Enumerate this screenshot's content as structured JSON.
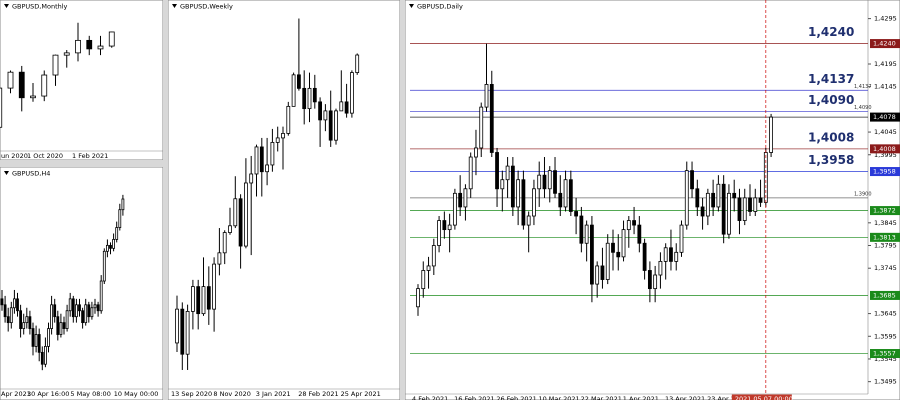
{
  "chart_data": [
    {
      "type": "candlestick",
      "title": "GBPUSD,Monthly",
      "categories": [
        "un 2020",
        null,
        null,
        null,
        "1 Oct 2020",
        null,
        null,
        null,
        "1 Feb 2021",
        null,
        null,
        null
      ],
      "open": [
        1.235,
        1.24,
        1.309,
        1.337,
        1.292,
        1.295,
        1.332,
        1.367,
        1.371,
        1.393,
        1.378,
        1.383
      ],
      "high": [
        1.281,
        1.317,
        1.34,
        1.348,
        1.318,
        1.34,
        1.368,
        1.376,
        1.424,
        1.401,
        1.401,
        1.4085
      ],
      "low": [
        1.225,
        1.238,
        1.3,
        1.268,
        1.285,
        1.286,
        1.313,
        1.345,
        1.356,
        1.367,
        1.367,
        1.38
      ],
      "close": [
        1.24,
        1.309,
        1.337,
        1.292,
        1.295,
        1.332,
        1.367,
        1.371,
        1.393,
        1.378,
        1.383,
        1.4078
      ],
      "ylim": [
        1.2,
        1.45
      ]
    },
    {
      "type": "candlestick",
      "title": "GBPUSD,H4",
      "categories": [
        "Apr 2021",
        null,
        null,
        null,
        null,
        null,
        null,
        null,
        null,
        null,
        "30 Apr 16:00",
        null,
        null,
        null,
        null,
        null,
        null,
        null,
        null,
        null,
        null,
        null,
        null,
        null,
        "5 May 08:00",
        null,
        null,
        null,
        null,
        null,
        null,
        null,
        null,
        null,
        null,
        null,
        null,
        null,
        "10 May 00:00",
        null
      ],
      "open": [
        1.391,
        1.39,
        1.388,
        1.387,
        1.3895,
        1.391,
        1.389,
        1.386,
        1.387,
        1.388,
        1.386,
        1.383,
        1.385,
        1.382,
        1.38,
        1.383,
        1.386,
        1.39,
        1.388,
        1.385,
        1.387,
        1.386,
        1.389,
        1.391,
        1.388,
        1.39,
        1.389,
        1.387,
        1.39,
        1.388,
        1.3895,
        1.39,
        1.389,
        1.394,
        1.399,
        1.4,
        1.3995,
        1.401,
        1.403,
        1.406
      ],
      "high": [
        1.3925,
        1.3915,
        1.3895,
        1.3905,
        1.3925,
        1.392,
        1.39,
        1.3885,
        1.3895,
        1.389,
        1.387,
        1.3865,
        1.386,
        1.383,
        1.3845,
        1.387,
        1.3915,
        1.391,
        1.389,
        1.3885,
        1.388,
        1.39,
        1.392,
        1.3915,
        1.391,
        1.391,
        1.3895,
        1.391,
        1.3905,
        1.3905,
        1.391,
        1.3905,
        1.395,
        1.3995,
        1.401,
        1.4005,
        1.402,
        1.404,
        1.407,
        1.4085
      ],
      "low": [
        1.389,
        1.387,
        1.3855,
        1.386,
        1.3885,
        1.388,
        1.3845,
        1.385,
        1.386,
        1.385,
        1.3815,
        1.382,
        1.3805,
        1.379,
        1.3795,
        1.382,
        1.385,
        1.387,
        1.384,
        1.3845,
        1.385,
        1.3855,
        1.388,
        1.387,
        1.387,
        1.388,
        1.386,
        1.3865,
        1.387,
        1.3875,
        1.3885,
        1.388,
        1.3885,
        1.3935,
        1.398,
        1.3985,
        1.399,
        1.4005,
        1.4025,
        1.405
      ],
      "close": [
        1.39,
        1.388,
        1.387,
        1.3895,
        1.391,
        1.389,
        1.386,
        1.387,
        1.388,
        1.386,
        1.383,
        1.385,
        1.382,
        1.38,
        1.383,
        1.386,
        1.39,
        1.388,
        1.385,
        1.387,
        1.386,
        1.389,
        1.391,
        1.388,
        1.39,
        1.389,
        1.387,
        1.39,
        1.388,
        1.3895,
        1.39,
        1.389,
        1.394,
        1.399,
        1.4,
        1.3995,
        1.401,
        1.403,
        1.406,
        1.4078
      ],
      "ylim": [
        1.376,
        1.411
      ]
    },
    {
      "type": "candlestick",
      "title": "GBPUSD,Weekly",
      "categories": [
        "13 Sep 2020",
        null,
        null,
        null,
        null,
        null,
        null,
        null,
        "8 Nov 2020",
        null,
        null,
        null,
        null,
        null,
        null,
        null,
        "3 Jan 2021",
        null,
        null,
        null,
        null,
        null,
        null,
        null,
        "28 Feb 2021",
        null,
        null,
        null,
        null,
        null,
        null,
        null,
        "25 Apr 2021",
        null,
        null
      ],
      "open": [
        1.28,
        1.295,
        1.275,
        1.294,
        1.305,
        1.293,
        1.305,
        1.295,
        1.315,
        1.32,
        1.329,
        1.332,
        1.344,
        1.323,
        1.351,
        1.355,
        1.367,
        1.356,
        1.359,
        1.369,
        1.371,
        1.373,
        1.385,
        1.399,
        1.393,
        1.384,
        1.393,
        1.387,
        1.379,
        1.383,
        1.37,
        1.383,
        1.387,
        1.382,
        1.4
      ],
      "high": [
        1.301,
        1.298,
        1.297,
        1.308,
        1.308,
        1.318,
        1.314,
        1.318,
        1.331,
        1.33,
        1.34,
        1.354,
        1.346,
        1.362,
        1.363,
        1.368,
        1.371,
        1.371,
        1.375,
        1.376,
        1.376,
        1.387,
        1.4,
        1.424,
        1.401,
        1.4,
        1.399,
        1.389,
        1.386,
        1.392,
        1.384,
        1.401,
        1.395,
        1.401,
        1.4085
      ],
      "low": [
        1.276,
        1.268,
        1.268,
        1.286,
        1.286,
        1.292,
        1.288,
        1.285,
        1.31,
        1.315,
        1.328,
        1.331,
        1.313,
        1.322,
        1.319,
        1.345,
        1.345,
        1.35,
        1.356,
        1.365,
        1.357,
        1.372,
        1.385,
        1.392,
        1.377,
        1.378,
        1.384,
        1.367,
        1.374,
        1.367,
        1.368,
        1.383,
        1.38,
        1.38,
        1.399
      ],
      "close": [
        1.295,
        1.275,
        1.294,
        1.305,
        1.293,
        1.305,
        1.295,
        1.315,
        1.32,
        1.329,
        1.332,
        1.344,
        1.323,
        1.351,
        1.355,
        1.367,
        1.356,
        1.359,
        1.369,
        1.371,
        1.373,
        1.385,
        1.399,
        1.393,
        1.384,
        1.393,
        1.387,
        1.379,
        1.383,
        1.37,
        1.383,
        1.387,
        1.382,
        1.4,
        1.4078
      ],
      "ylim": [
        1.26,
        1.43
      ]
    },
    {
      "type": "candlestick",
      "title": "GBPUSD,Daily",
      "categories": [
        "4 Feb 2021",
        null,
        null,
        null,
        null,
        null,
        null,
        null,
        "16 Feb 2021",
        null,
        null,
        null,
        null,
        null,
        null,
        null,
        "26 Feb 2021",
        null,
        null,
        null,
        null,
        null,
        null,
        null,
        "10 Mar 2021",
        null,
        null,
        null,
        null,
        null,
        null,
        null,
        "22 Mar 2021",
        null,
        null,
        null,
        null,
        null,
        null,
        null,
        "1 Apr 2021",
        null,
        null,
        null,
        null,
        null,
        null,
        null,
        "13 Apr 2021",
        null,
        null,
        null,
        null,
        null,
        null,
        null,
        "23 Apr 2021",
        null,
        null,
        null,
        null,
        null,
        null,
        null,
        null,
        null,
        null,
        null
      ],
      "crosshair_label": "2021.05.07 00:00",
      "open": [
        1.366,
        1.37,
        1.374,
        1.375,
        1.3795,
        1.385,
        1.383,
        1.384,
        1.391,
        1.388,
        1.392,
        1.399,
        1.401,
        1.41,
        1.415,
        1.4,
        1.392,
        1.394,
        1.397,
        1.388,
        1.394,
        1.384,
        1.386,
        1.392,
        1.395,
        1.392,
        1.396,
        1.391,
        1.388,
        1.394,
        1.387,
        1.386,
        1.38,
        1.384,
        1.371,
        1.375,
        1.372,
        1.38,
        1.378,
        1.377,
        1.383,
        1.385,
        1.384,
        1.38,
        1.374,
        1.37,
        1.373,
        1.376,
        1.379,
        1.376,
        1.378,
        1.384,
        1.396,
        1.392,
        1.388,
        1.386,
        1.391,
        1.388,
        1.393,
        1.382,
        1.391,
        1.39,
        1.385,
        1.39,
        1.387,
        1.39,
        1.389,
        1.4
      ],
      "high": [
        1.371,
        1.376,
        1.377,
        1.381,
        1.386,
        1.387,
        1.3865,
        1.392,
        1.395,
        1.393,
        1.4,
        1.405,
        1.411,
        1.424,
        1.418,
        1.401,
        1.396,
        1.399,
        1.399,
        1.396,
        1.396,
        1.387,
        1.394,
        1.398,
        1.399,
        1.397,
        1.399,
        1.395,
        1.396,
        1.396,
        1.39,
        1.388,
        1.385,
        1.386,
        1.376,
        1.379,
        1.382,
        1.383,
        1.382,
        1.385,
        1.386,
        1.388,
        1.386,
        1.381,
        1.376,
        1.375,
        1.378,
        1.38,
        1.383,
        1.38,
        1.385,
        1.398,
        1.398,
        1.394,
        1.39,
        1.392,
        1.394,
        1.395,
        1.395,
        1.393,
        1.394,
        1.392,
        1.392,
        1.393,
        1.392,
        1.394,
        1.401,
        1.4085
      ],
      "low": [
        1.364,
        1.368,
        1.37,
        1.373,
        1.378,
        1.381,
        1.378,
        1.383,
        1.386,
        1.385,
        1.39,
        1.395,
        1.399,
        1.409,
        1.399,
        1.388,
        1.387,
        1.39,
        1.386,
        1.384,
        1.383,
        1.378,
        1.384,
        1.388,
        1.39,
        1.389,
        1.39,
        1.386,
        1.387,
        1.386,
        1.382,
        1.378,
        1.376,
        1.367,
        1.368,
        1.37,
        1.371,
        1.374,
        1.374,
        1.376,
        1.379,
        1.382,
        1.378,
        1.372,
        1.367,
        1.367,
        1.37,
        1.372,
        1.374,
        1.374,
        1.377,
        1.383,
        1.39,
        1.386,
        1.383,
        1.384,
        1.386,
        1.387,
        1.38,
        1.381,
        1.387,
        1.382,
        1.384,
        1.386,
        1.386,
        1.388,
        1.388,
        1.399
      ],
      "close": [
        1.37,
        1.374,
        1.375,
        1.3795,
        1.385,
        1.383,
        1.384,
        1.391,
        1.388,
        1.392,
        1.399,
        1.401,
        1.41,
        1.415,
        1.4,
        1.392,
        1.394,
        1.397,
        1.388,
        1.394,
        1.384,
        1.386,
        1.392,
        1.395,
        1.392,
        1.396,
        1.391,
        1.388,
        1.394,
        1.387,
        1.386,
        1.38,
        1.384,
        1.371,
        1.375,
        1.372,
        1.38,
        1.378,
        1.377,
        1.383,
        1.385,
        1.384,
        1.38,
        1.374,
        1.37,
        1.373,
        1.376,
        1.379,
        1.376,
        1.378,
        1.384,
        1.396,
        1.392,
        1.388,
        1.386,
        1.391,
        1.388,
        1.393,
        1.382,
        1.391,
        1.39,
        1.385,
        1.39,
        1.387,
        1.39,
        1.389,
        1.4,
        1.4078
      ],
      "ylim": [
        1.347,
        1.4325
      ],
      "yticks": [
        {
          "value": 1.4295,
          "label": "1,4295"
        },
        {
          "value": 1.4195,
          "label": "1,4195"
        },
        {
          "value": 1.4145,
          "label": "1,4145"
        },
        {
          "value": 1.4045,
          "label": "1,4045"
        },
        {
          "value": 1.3995,
          "label": "1,3995"
        },
        {
          "value": 1.3845,
          "label": "1,3845"
        },
        {
          "value": 1.3795,
          "label": "1,3795"
        },
        {
          "value": 1.3745,
          "label": "1,3745"
        },
        {
          "value": 1.3645,
          "label": "1,3645"
        },
        {
          "value": 1.3595,
          "label": "1,3595"
        },
        {
          "value": 1.3545,
          "label": "1,3545"
        },
        {
          "value": 1.3495,
          "label": "1,3495"
        }
      ],
      "levels": [
        {
          "value": 1.424,
          "label": "1,4240",
          "color": "#8b1a1a",
          "tag": true,
          "callout": true
        },
        {
          "value": 1.4137,
          "label": "1,4137",
          "color": "#3a3ad0",
          "tag": false,
          "callout": true
        },
        {
          "value": 1.409,
          "label": "1,4090",
          "color": "#3a3ad0",
          "tag": false,
          "callout": true
        },
        {
          "value": 1.4078,
          "label": "1,4078",
          "color": "#000000",
          "tag": true,
          "callout": false
        },
        {
          "value": 1.4008,
          "label": "1,4008",
          "color": "#8b1a1a",
          "tag": true,
          "callout": true
        },
        {
          "value": 1.3958,
          "label": "1,3958",
          "color": "#2a3ad8",
          "tag": true,
          "callout": true
        },
        {
          "value": 1.39,
          "label": "1,3900",
          "color": "#555555",
          "tag": false,
          "callout": false
        },
        {
          "value": 1.3872,
          "label": "1,3872",
          "color": "#1a8a1a",
          "tag": true,
          "callout": false
        },
        {
          "value": 1.3813,
          "label": "1,3813",
          "color": "#1a8a1a",
          "tag": true,
          "callout": false
        },
        {
          "value": 1.3685,
          "label": "1,3685",
          "color": "#1a8a1a",
          "tag": true,
          "callout": false
        },
        {
          "value": 1.3557,
          "label": "1,3557",
          "color": "#1a8a1a",
          "tag": true,
          "callout": false
        }
      ]
    }
  ]
}
